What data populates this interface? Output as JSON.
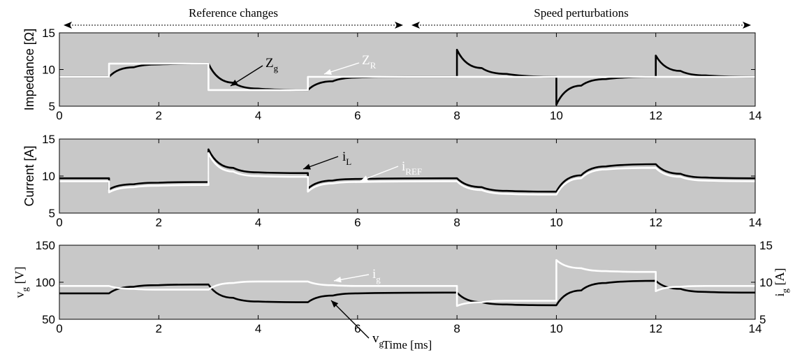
{
  "headers": [
    {
      "label": "Reference changes",
      "from": 0,
      "to": 7
    },
    {
      "label": "Speed perturbations",
      "from": 7,
      "to": 14
    }
  ],
  "colors": {
    "plot_bg": "#c8c8c8",
    "trace_dark": "#000000",
    "trace_light": "#ffffff"
  },
  "chart_data": [
    {
      "type": "line",
      "ylabel": "Impedance [Ω]",
      "xlim": [
        0,
        14
      ],
      "ylim": [
        5,
        15
      ],
      "xticks": [
        0,
        2,
        4,
        6,
        8,
        10,
        12,
        14
      ],
      "yticks": [
        5,
        10,
        15
      ],
      "grid": false,
      "series": [
        {
          "name": "Z_g",
          "label_main": "Z",
          "label_sub": "g",
          "color": "#000000",
          "x": [
            0,
            1,
            1.5,
            2,
            3,
            3.5,
            4,
            5,
            5.5,
            6,
            7,
            8,
            8,
            8.5,
            9,
            10,
            10,
            10.5,
            11,
            12,
            12,
            12.5,
            13,
            14
          ],
          "y": [
            9,
            9,
            10.3,
            10.7,
            10.8,
            8.2,
            7.4,
            7.2,
            8.4,
            8.9,
            9,
            9,
            12.7,
            10.2,
            9.4,
            9,
            5.2,
            7.8,
            8.7,
            9,
            11.9,
            9.8,
            9.2,
            9
          ]
        },
        {
          "name": "Z_R",
          "label_main": "Z",
          "label_sub": "R",
          "color": "#ffffff",
          "x": [
            0,
            1,
            1,
            3,
            3,
            5,
            5,
            14
          ],
          "y": [
            9,
            9,
            10.8,
            10.8,
            7.2,
            7.2,
            9,
            9
          ]
        }
      ]
    },
    {
      "type": "line",
      "ylabel": "Current [A]",
      "xlim": [
        0,
        14
      ],
      "ylim": [
        5,
        15
      ],
      "xticks": [
        0,
        2,
        4,
        6,
        8,
        10,
        12,
        14
      ],
      "yticks": [
        5,
        10,
        15
      ],
      "grid": false,
      "series": [
        {
          "name": "i_L",
          "label_main": "i",
          "label_sub": "L",
          "color": "#000000",
          "x": [
            0,
            1,
            1,
            1.5,
            2,
            3,
            3,
            3.5,
            4,
            5,
            5,
            5.5,
            6,
            8,
            8.5,
            9,
            10,
            10.5,
            11,
            12,
            12.5,
            13,
            14
          ],
          "y": [
            9.7,
            9.7,
            8.2,
            8.9,
            9.1,
            9.2,
            13.6,
            11.1,
            10.5,
            10.4,
            8.3,
            9.4,
            9.6,
            9.7,
            8.5,
            8,
            7.9,
            10.1,
            11.3,
            11.6,
            10.3,
            9.8,
            9.7
          ]
        },
        {
          "name": "i_REF",
          "label_main": "i",
          "label_sub": "REF",
          "color": "#ffffff",
          "x": [
            0,
            1,
            1,
            1.5,
            2,
            3,
            3,
            3.5,
            4,
            5,
            5,
            5.5,
            6,
            8,
            8.5,
            9,
            10,
            10.5,
            11,
            12,
            12.5,
            13,
            14
          ],
          "y": [
            9.3,
            9.3,
            7.8,
            8.5,
            8.7,
            8.8,
            13.1,
            10.6,
            10,
            9.9,
            7.9,
            9,
            9.2,
            9.3,
            8.1,
            7.6,
            7.5,
            9.7,
            10.9,
            11.1,
            9.9,
            9.4,
            9.3
          ]
        }
      ]
    },
    {
      "type": "line",
      "ylabel_main": "v",
      "ylabel_sub": "g",
      "ylabel_unit": " [V]",
      "y2label_main": "i",
      "y2label_sub": "g",
      "y2label_unit": " [A]",
      "xlabel": "Time [ms]",
      "xlim": [
        0,
        14
      ],
      "ylim": [
        50,
        150
      ],
      "y2lim": [
        5,
        15
      ],
      "xticks": [
        0,
        2,
        4,
        6,
        8,
        10,
        12,
        14
      ],
      "yticks": [
        50,
        100,
        150
      ],
      "y2ticks": [
        5,
        10,
        15
      ],
      "grid": false,
      "series": [
        {
          "name": "v_g",
          "label_main": "v",
          "label_sub": "g",
          "axis": "left",
          "color": "#000000",
          "x": [
            0,
            1,
            1.5,
            2,
            3,
            3.5,
            4,
            5,
            5.5,
            6,
            8,
            8.5,
            9,
            10,
            10.5,
            11,
            12,
            12.5,
            13,
            14
          ],
          "y": [
            85,
            85,
            94,
            96,
            97,
            79,
            74,
            73,
            82,
            85,
            86,
            73,
            70,
            69,
            89,
            99,
            102,
            91,
            87,
            86
          ]
        },
        {
          "name": "i_g",
          "label_main": "i",
          "label_sub": "g",
          "axis": "right",
          "color": "#ffffff",
          "x": [
            0,
            1,
            1.5,
            2,
            3,
            3.5,
            4,
            5,
            5.5,
            6,
            8,
            8,
            8.5,
            9,
            10,
            10,
            10.5,
            11,
            12,
            12,
            12.5,
            13,
            14
          ],
          "y": [
            9.5,
            9.5,
            9.1,
            9,
            9,
            9.9,
            10.1,
            10.1,
            9.6,
            9.5,
            9.5,
            6.8,
            7.3,
            7.5,
            7.5,
            13,
            11.9,
            11.5,
            11.4,
            8.8,
            9.4,
            9.5,
            9.5
          ]
        }
      ]
    }
  ]
}
